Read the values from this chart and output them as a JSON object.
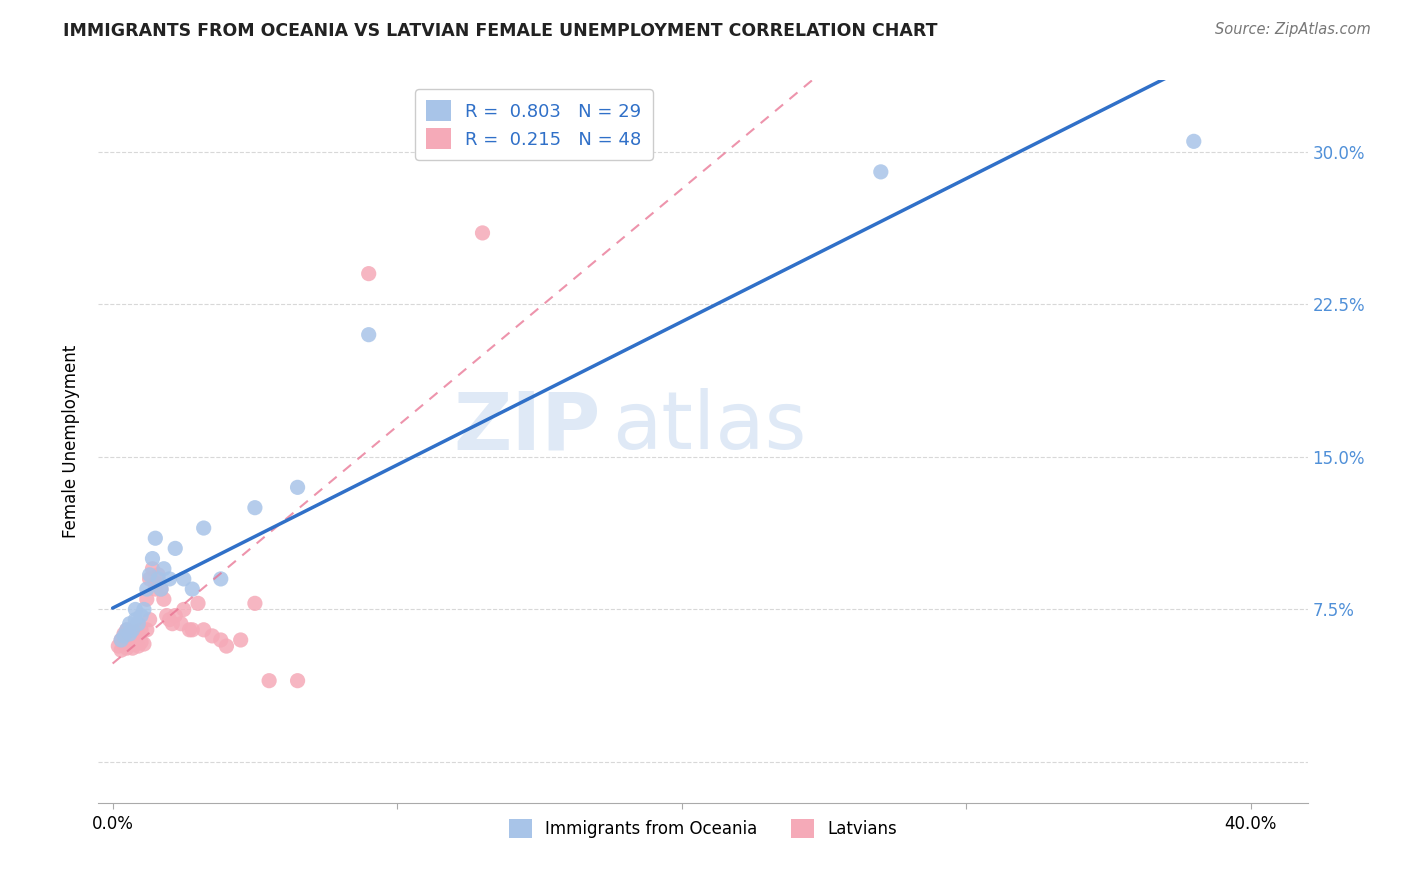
{
  "title": "IMMIGRANTS FROM OCEANIA VS LATVIAN FEMALE UNEMPLOYMENT CORRELATION CHART",
  "source": "Source: ZipAtlas.com",
  "ylabel": "Female Unemployment",
  "xlim": [
    -0.005,
    0.42
  ],
  "ylim": [
    -0.02,
    0.335
  ],
  "x_tick_pos": [
    0.0,
    0.1,
    0.2,
    0.3,
    0.4
  ],
  "x_tick_labels": [
    "0.0%",
    "",
    "",
    "",
    "40.0%"
  ],
  "y_tick_pos": [
    0.0,
    0.075,
    0.15,
    0.225,
    0.3
  ],
  "y_tick_labels_right": [
    "",
    "7.5%",
    "15.0%",
    "22.5%",
    "30.0%"
  ],
  "legend_labels": [
    "Immigrants from Oceania",
    "Latvians"
  ],
  "r_blue": "0.803",
  "n_blue": "29",
  "r_pink": "0.215",
  "n_pink": "48",
  "blue_color": "#a8c4e8",
  "pink_color": "#f5aab8",
  "blue_line_color": "#3070c8",
  "pink_line_color": "#e87090",
  "right_axis_color": "#5090d8",
  "watermark_text": "ZIPatlas",
  "watermark_color": "#c5d8f0",
  "blue_scatter_x": [
    0.003,
    0.004,
    0.005,
    0.006,
    0.006,
    0.007,
    0.008,
    0.008,
    0.009,
    0.01,
    0.011,
    0.012,
    0.013,
    0.014,
    0.015,
    0.016,
    0.017,
    0.018,
    0.02,
    0.022,
    0.025,
    0.028,
    0.032,
    0.038,
    0.05,
    0.065,
    0.09,
    0.27,
    0.38
  ],
  "blue_scatter_y": [
    0.06,
    0.062,
    0.065,
    0.063,
    0.068,
    0.065,
    0.07,
    0.075,
    0.068,
    0.072,
    0.075,
    0.085,
    0.092,
    0.1,
    0.11,
    0.09,
    0.085,
    0.095,
    0.09,
    0.105,
    0.09,
    0.085,
    0.115,
    0.09,
    0.125,
    0.135,
    0.21,
    0.29,
    0.305
  ],
  "pink_scatter_x": [
    0.002,
    0.003,
    0.003,
    0.004,
    0.004,
    0.005,
    0.005,
    0.005,
    0.006,
    0.006,
    0.007,
    0.007,
    0.008,
    0.008,
    0.009,
    0.009,
    0.01,
    0.01,
    0.011,
    0.012,
    0.012,
    0.013,
    0.013,
    0.014,
    0.015,
    0.015,
    0.016,
    0.017,
    0.018,
    0.019,
    0.02,
    0.021,
    0.022,
    0.024,
    0.025,
    0.027,
    0.028,
    0.03,
    0.032,
    0.035,
    0.038,
    0.04,
    0.045,
    0.05,
    0.055,
    0.065,
    0.09,
    0.13
  ],
  "pink_scatter_y": [
    0.057,
    0.06,
    0.055,
    0.063,
    0.058,
    0.056,
    0.062,
    0.065,
    0.058,
    0.063,
    0.056,
    0.062,
    0.058,
    0.064,
    0.057,
    0.063,
    0.059,
    0.065,
    0.058,
    0.065,
    0.08,
    0.07,
    0.09,
    0.095,
    0.088,
    0.085,
    0.092,
    0.085,
    0.08,
    0.072,
    0.07,
    0.068,
    0.072,
    0.068,
    0.075,
    0.065,
    0.065,
    0.078,
    0.065,
    0.062,
    0.06,
    0.057,
    0.06,
    0.078,
    0.04,
    0.04,
    0.24,
    0.26
  ]
}
